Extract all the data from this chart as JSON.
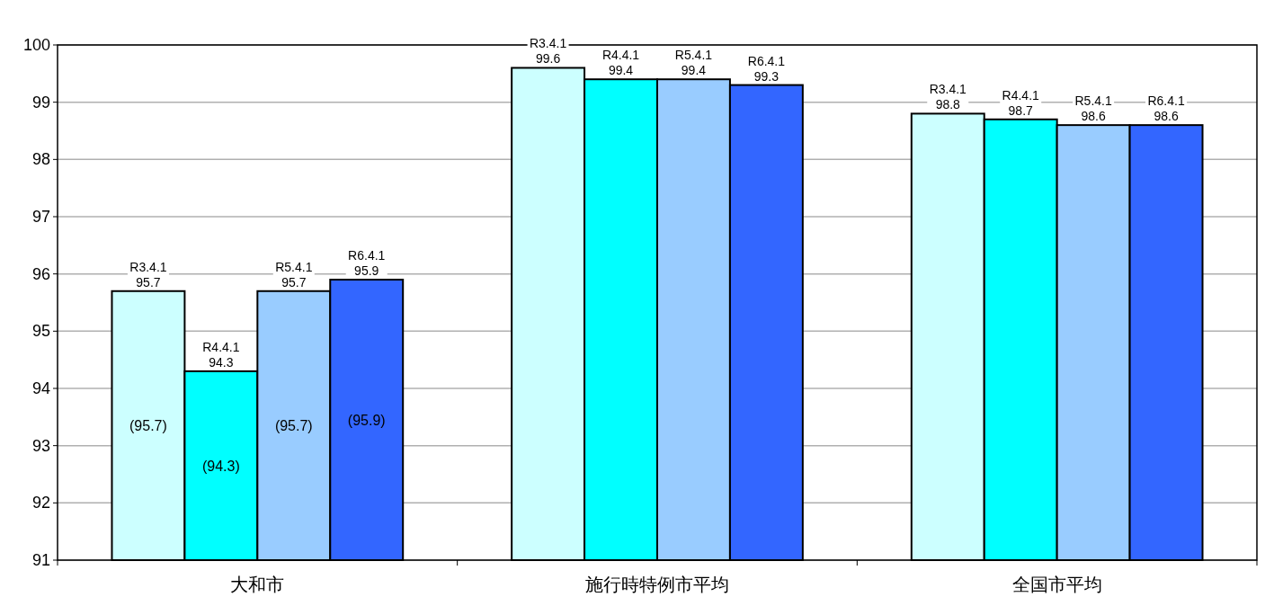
{
  "chart_data": {
    "type": "bar",
    "categories": [
      "大和市",
      "施行時特例市平均",
      "全国市平均"
    ],
    "series": [
      {
        "name": "R3.4.1",
        "color": "#ccffff",
        "values": [
          95.7,
          99.6,
          98.8
        ]
      },
      {
        "name": "R4.4.1",
        "color": "#00ffff",
        "values": [
          94.3,
          99.4,
          98.7
        ]
      },
      {
        "name": "R5.4.1",
        "color": "#99ccff",
        "values": [
          95.7,
          99.4,
          98.6
        ]
      },
      {
        "name": "R6.4.1",
        "color": "#3366ff",
        "values": [
          95.9,
          99.3,
          98.6
        ]
      }
    ],
    "ylim": [
      91,
      100
    ],
    "yticks": [
      91,
      92,
      93,
      94,
      95,
      96,
      97,
      98,
      99,
      100
    ],
    "grid": "y",
    "data_labels": true,
    "annotations": [
      "(95.7)",
      "(94.3)",
      "(95.7)",
      "(95.9)"
    ]
  }
}
